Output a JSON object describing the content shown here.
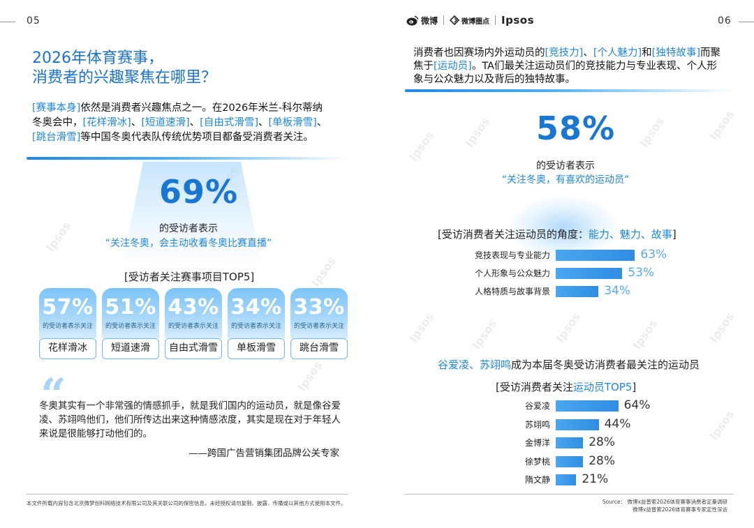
{
  "left": {
    "page_num": "05",
    "title_line1": "2026年体育赛事，",
    "title_line2": "消费者的兴趣聚焦在哪里？",
    "intro": {
      "p1": "[赛事本身]",
      "p2": "依然是消费者兴趣焦点之一。在2026年米兰-科尔蒂纳冬奥会中，",
      "p3": "[花样滑冰]",
      "p4": "、",
      "p5": "[短道速滑]",
      "p6": "、",
      "p7": "[自由式滑雪]",
      "p8": "、",
      "p9": "[单板滑雪]",
      "p10": "、",
      "p11": "[跳台滑雪]",
      "p12": "等中国冬奥代表队传统优势项目都备受消费者关注。"
    },
    "stat_pct": "69%",
    "stat_sub": "的受访者表示",
    "stat_quote": "“关注冬奥，会主动收看冬奥比赛直播”",
    "top5_head": "[受访者关注赛事项目TOP5]",
    "cards": [
      {
        "pct": "57%",
        "cap": "的受访者表示关注",
        "label": "花样滑冰"
      },
      {
        "pct": "51%",
        "cap": "的受访者表示关注",
        "label": "短道速滑"
      },
      {
        "pct": "43%",
        "cap": "的受访者表示关注",
        "label": "自由式滑雪"
      },
      {
        "pct": "34%",
        "cap": "的受访者表示关注",
        "label": "单板滑雪"
      },
      {
        "pct": "33%",
        "cap": "的受访者表示关注",
        "label": "跳台滑雪"
      }
    ],
    "quote_mark": "“",
    "quote_body": "冬奥其实有一个非常强的情感抓手，就是我们国内的运动员，就是像谷爱凌、苏翊鸣他们，他们所传达出来这种情感浓度，其实是现在对于年轻人来说是很能够打动他们的。",
    "quote_attr": "——跨国广告营销集团品牌公关专家",
    "footer": "本文件所载内容包含北京微梦创科网络技术有限公司及其关联公司的保密信息，未经授权请勿复制、披露、传播或以其他方式使用本文件。"
  },
  "right": {
    "page_num": "06",
    "logos": {
      "weibo": "微博",
      "circle": "微博圈点",
      "ipsos": "Ipsos"
    },
    "intro": {
      "p1": "消费者也因赛场内外运动员的",
      "p2": "[竞技力]",
      "p3": "、",
      "p4": "[个人魅力]",
      "p5": "和",
      "p6": "[独特故事]",
      "p7": "而聚焦于",
      "p8": "[运动员]",
      "p9": "。TA们最关注运动员们的竞技能力与专业表现、个人形象与公众魅力以及背后的独特故事。"
    },
    "stat_pct": "58%",
    "stat_sub": "的受访者表示",
    "stat_quote": "“关注冬奥，有喜欢的运动员”",
    "angle_head_a": "[受访消费者关注运动员的角度：",
    "angle_head_b": "能力、魅力、故事",
    "angle_head_c": "]",
    "source": "Source： 微博x益普索2026体育赛事消费者定量调研",
    "source2": "微博x益普索2026体育赛事专家定性深访",
    "athlete_head_a": "谷爱凌、苏翊鸣",
    "athlete_head_b": "成为本届冬奥受访消费者最关注的运动员",
    "top5_head_a": "[受访消费者关注",
    "top5_head_b": "运动员TOP5",
    "top5_head_c": "]"
  },
  "watermark": "Ipsos",
  "chart_data": [
    {
      "type": "bar",
      "title": "[受访消费者关注运动员的角度：能力、魅力、故事]",
      "categories": [
        "竞技表现与专业能力",
        "个人形象与公众魅力",
        "人格特质与故事背景"
      ],
      "values": [
        63,
        53,
        34
      ],
      "value_labels": [
        "63%",
        "53%",
        "34%"
      ],
      "orientation": "horizontal",
      "color": "#2f8de4"
    },
    {
      "type": "bar",
      "title": "[受访消费者关注运动员TOP5]",
      "categories": [
        "谷爱凌",
        "苏翊鸣",
        "金博洋",
        "徐梦桃",
        "隋文静"
      ],
      "values": [
        64,
        44,
        28,
        28,
        21
      ],
      "value_labels": [
        "64%",
        "44%",
        "28%",
        "28%",
        "21%"
      ],
      "orientation": "horizontal",
      "color": "#2f8de4"
    }
  ]
}
